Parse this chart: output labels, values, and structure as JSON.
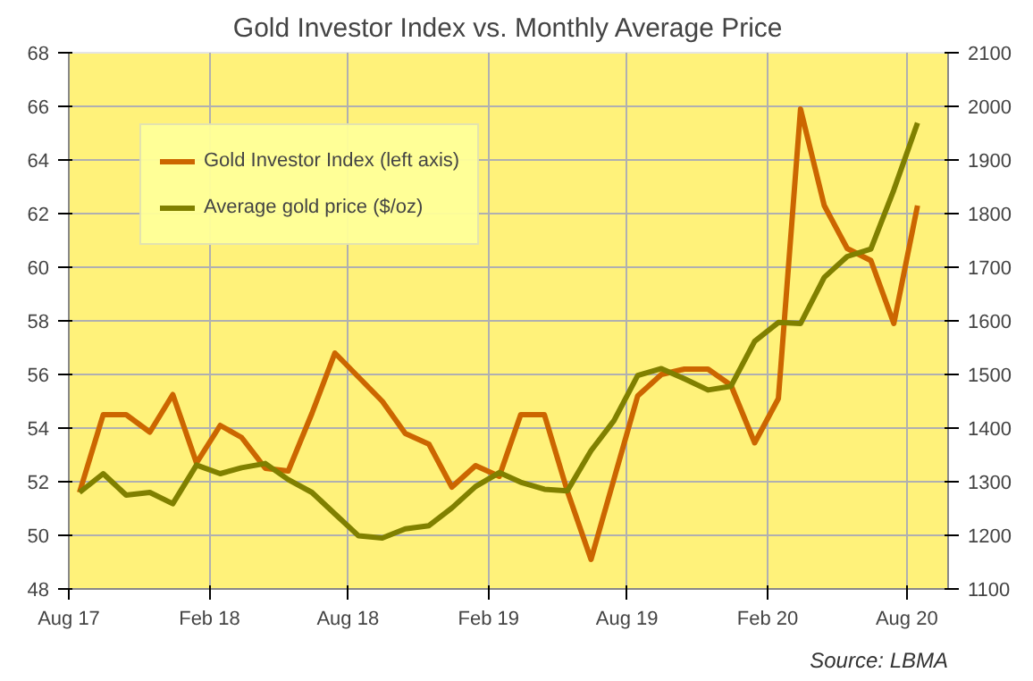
{
  "chart_data": {
    "type": "line",
    "title": "Gold Investor Index vs. Monthly Average Price",
    "x": [
      "2017-08-15",
      "2017-09-15",
      "2017-10-15",
      "2017-11-15",
      "2017-12-15",
      "2018-01-15",
      "2018-02-15",
      "2018-03-15",
      "2018-04-15",
      "2018-05-15",
      "2018-06-15",
      "2018-07-15",
      "2018-08-15",
      "2018-09-15",
      "2018-10-15",
      "2018-11-15",
      "2018-12-15",
      "2019-01-15",
      "2019-02-15",
      "2019-03-15",
      "2019-04-15",
      "2019-05-15",
      "2019-06-15",
      "2019-07-15",
      "2019-08-15",
      "2019-09-15",
      "2019-10-15",
      "2019-11-15",
      "2019-12-15",
      "2020-01-15",
      "2020-02-15",
      "2020-03-15",
      "2020-04-15",
      "2020-05-15",
      "2020-06-15",
      "2020-07-15",
      "2020-08-15"
    ],
    "series": [
      {
        "name": "Gold Investor Index (left axis)",
        "color": "#cc6600",
        "values": [
          51.6,
          54.5,
          54.5,
          53.85,
          55.25,
          52.7,
          54.1,
          53.65,
          52.5,
          52.4,
          54.55,
          56.8,
          55.9,
          55.0,
          53.8,
          53.4,
          51.8,
          52.6,
          52.2,
          54.5,
          54.5,
          51.65,
          49.1,
          52.1,
          55.2,
          56.0,
          56.2,
          56.2,
          55.6,
          53.45,
          55.1,
          65.9,
          62.3,
          60.7,
          60.25,
          57.9,
          62.3
        ]
      },
      {
        "name": "Average gold price ($/oz)",
        "color": "#808000",
        "axis": "y2",
        "values": [
          1280,
          1315,
          1275,
          1280,
          1259,
          1331,
          1315,
          1326,
          1334,
          1304,
          1280,
          1240,
          1199,
          1195,
          1212,
          1218,
          1251,
          1291,
          1317,
          1299,
          1286,
          1283,
          1358,
          1414,
          1498,
          1511,
          1492,
          1471,
          1478,
          1562,
          1597,
          1595,
          1681,
          1720,
          1734,
          1844,
          1969
        ]
      }
    ],
    "xlim": [
      "2017-08-01",
      "2020-09-24"
    ],
    "xticks": [
      {
        "value": "2017-08-01",
        "label": "Aug 17"
      },
      {
        "value": "2018-02-01",
        "label": "Feb 18"
      },
      {
        "value": "2018-08-01",
        "label": "Aug 18"
      },
      {
        "value": "2019-02-01",
        "label": "Feb 19"
      },
      {
        "value": "2019-08-01",
        "label": "Aug 19"
      },
      {
        "value": "2020-02-01",
        "label": "Feb 20"
      },
      {
        "value": "2020-08-01",
        "label": "Aug 20"
      }
    ],
    "ylim": [
      48,
      68
    ],
    "yticks": [
      48,
      50,
      52,
      54,
      56,
      58,
      60,
      62,
      64,
      66,
      68
    ],
    "y2lim": [
      1100,
      2100
    ],
    "y2ticks": [
      1100,
      1200,
      1300,
      1400,
      1500,
      1600,
      1700,
      1800,
      1900,
      2000,
      2100
    ],
    "grid": true,
    "legend": "top left",
    "annotations": [
      "Source: LBMA"
    ]
  }
}
